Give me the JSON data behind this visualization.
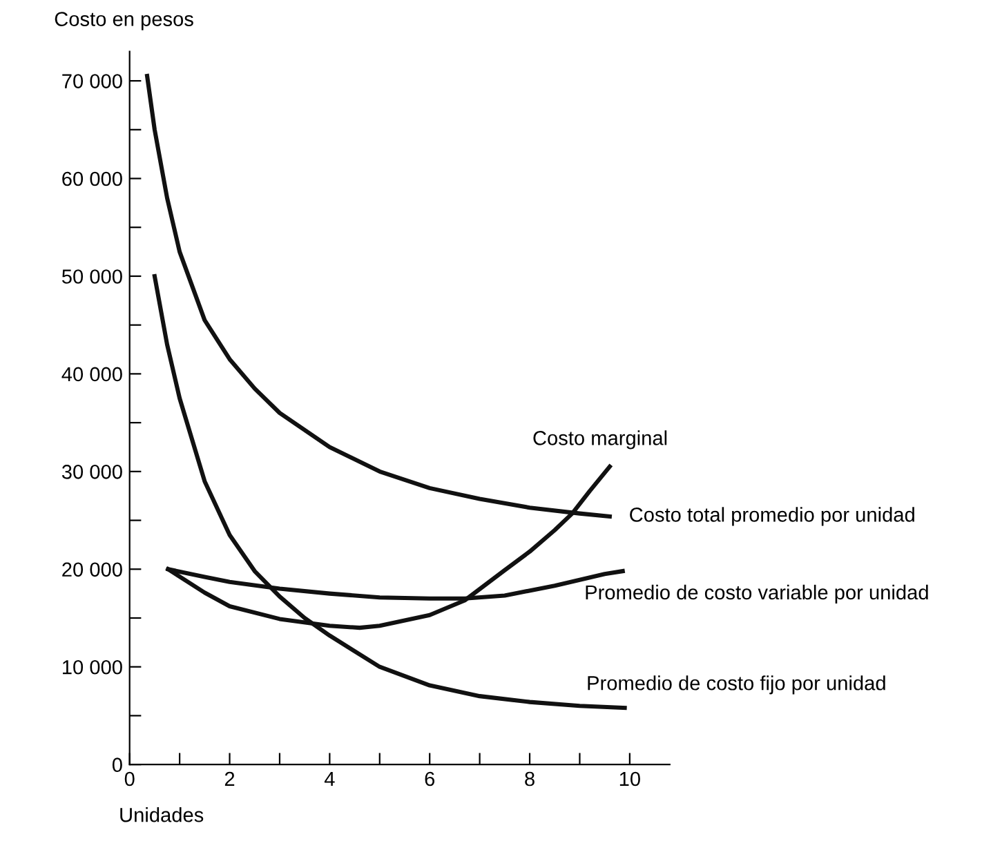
{
  "chart_data": {
    "type": "line",
    "ylabel": "Costo en pesos",
    "xlabel": "Unidades",
    "xlim": [
      0,
      10.8
    ],
    "ylim": [
      0,
      73000
    ],
    "xticks": [
      0,
      {
        "value": 1,
        "label": null
      },
      2,
      {
        "value": 3,
        "label": null
      },
      4,
      {
        "value": 5,
        "label": null
      },
      6,
      {
        "value": 7,
        "label": null
      },
      8,
      {
        "value": 9,
        "label": null
      },
      10
    ],
    "yticks": [
      0,
      {
        "value": 5000,
        "label": null
      },
      {
        "value": 10000,
        "label": "10 000"
      },
      {
        "value": 15000,
        "label": null
      },
      {
        "value": 20000,
        "label": "20 000"
      },
      {
        "value": 25000,
        "label": null
      },
      {
        "value": 30000,
        "label": "30 000"
      },
      {
        "value": 35000,
        "label": null
      },
      {
        "value": 40000,
        "label": "40 000"
      },
      {
        "value": 45000,
        "label": null
      },
      {
        "value": 50000,
        "label": "50 000"
      },
      {
        "value": 55000,
        "label": null
      },
      {
        "value": 60000,
        "label": "60 000"
      },
      {
        "value": 65000,
        "label": null
      },
      {
        "value": 70000,
        "label": "70 000"
      }
    ],
    "grid": false,
    "legend": false,
    "marker": "none",
    "line_style": "solid",
    "series": [
      {
        "name": "Costo marginal",
        "color": "#111111",
        "x": [
          0.77,
          1.5,
          2,
          3,
          4,
          4.6,
          5,
          6,
          6.7,
          7.5,
          8,
          8.5,
          8.85,
          9.2,
          9.6
        ],
        "values": [
          20000,
          17600,
          16200,
          14900,
          14200,
          14000,
          14200,
          15300,
          16800,
          19900,
          21800,
          24000,
          25700,
          28000,
          30500
        ]
      },
      {
        "name": "Costo total promedio por unidad",
        "color": "#111111",
        "x": [
          0.35,
          0.5,
          0.75,
          1,
          1.5,
          2,
          2.5,
          3,
          4,
          5,
          6,
          7,
          8,
          9,
          9.6
        ],
        "values": [
          70500,
          65000,
          58000,
          52500,
          45500,
          41500,
          38500,
          36000,
          32500,
          30000,
          28300,
          27200,
          26300,
          25700,
          25400
        ]
      },
      {
        "name": "Promedio de costo variable por unidad",
        "color": "#111111",
        "x": [
          0.77,
          1.5,
          2,
          3,
          4,
          5,
          6,
          6.7,
          7.5,
          8.5,
          9.5,
          9.86
        ],
        "values": [
          20000,
          19200,
          18700,
          18000,
          17500,
          17100,
          17000,
          17000,
          17300,
          18300,
          19500,
          19800
        ]
      },
      {
        "name": "Promedio de costo fijo por unidad",
        "color": "#111111",
        "x": [
          0.5,
          0.75,
          1,
          1.5,
          2,
          2.5,
          3,
          3.5,
          4,
          5,
          6,
          7,
          8,
          9,
          9.9
        ],
        "values": [
          50000,
          43000,
          37500,
          29000,
          23500,
          19800,
          17200,
          15000,
          13200,
          10000,
          8100,
          7000,
          6400,
          6000,
          5800
        ]
      }
    ]
  }
}
